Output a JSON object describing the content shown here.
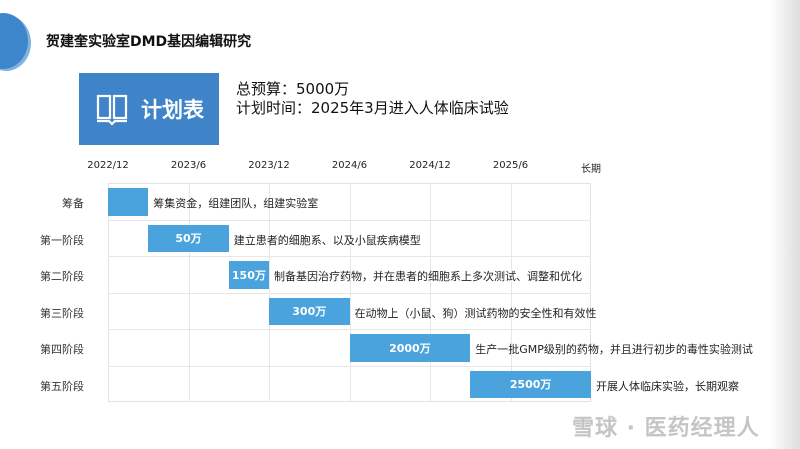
{
  "header": {
    "title": "贺建奎实验室DMD基因编辑研究",
    "plan_label": "计划表",
    "budget": "总预算：5000万",
    "schedule": "计划时间：2025年3月进入人体临床试验"
  },
  "watermark": "雪球 · 医药经理人",
  "colors": {
    "bar": "#4aa3dc",
    "box": "#3f84c9"
  },
  "chart_data": {
    "type": "gantt",
    "ticks": [
      "2022/12",
      "2023/6",
      "2023/12",
      "2024/6",
      "2024/12",
      "2025/6",
      "长期"
    ],
    "tick_months": [
      0,
      6,
      12,
      18,
      24,
      30,
      36
    ],
    "grid": true,
    "tasks": [
      {
        "phase": "筹备",
        "start": 0,
        "end": 3,
        "budget": "",
        "description": "筹集资金，组建团队，组建实验室"
      },
      {
        "phase": "第一阶段",
        "start": 3,
        "end": 9,
        "budget": "50万",
        "description": "建立患者的细胞系、以及小鼠疾病模型"
      },
      {
        "phase": "第二阶段",
        "start": 9,
        "end": 12,
        "budget": "150万",
        "description": "制备基因治疗药物，并在患者的细胞系上多次测试、调整和优化"
      },
      {
        "phase": "第三阶段",
        "start": 12,
        "end": 18,
        "budget": "300万",
        "description": "在动物上（小鼠、狗）测试药物的安全性和有效性"
      },
      {
        "phase": "第四阶段",
        "start": 18,
        "end": 27,
        "budget": "2000万",
        "description": "生产一批GMP级别的药物，并且进行初步的毒性实验测试"
      },
      {
        "phase": "第五阶段",
        "start": 27,
        "end": 36,
        "budget": "2500万",
        "description": "开展人体临床实验，长期观察"
      }
    ]
  }
}
